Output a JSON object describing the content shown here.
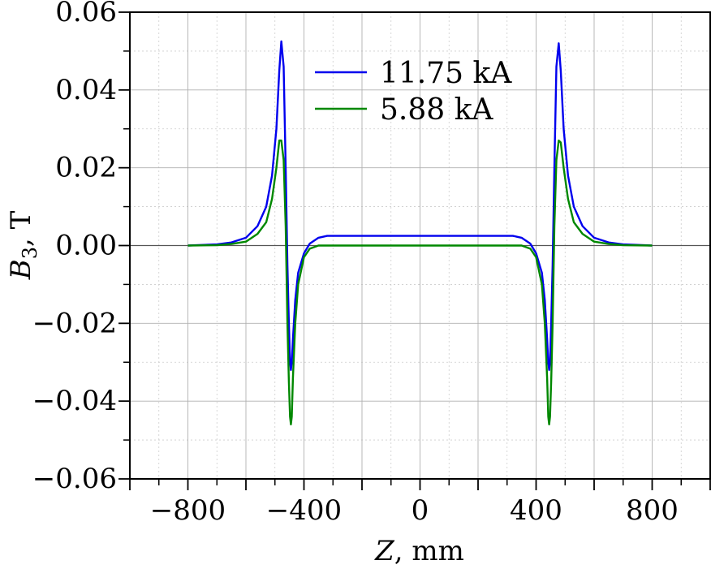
{
  "chart_data": {
    "type": "line",
    "title": "",
    "xlabel_var": "Z",
    "xlabel_unit": ", mm",
    "ylabel_var": "B",
    "ylabel_sub": "3",
    "ylabel_unit": ", T",
    "xlim": [
      -1000,
      1000
    ],
    "ylim": [
      -0.06,
      0.06
    ],
    "xticks": [
      -800,
      -400,
      0,
      400,
      800
    ],
    "xtick_labels": [
      "−800",
      "−400",
      "0",
      "400",
      "800"
    ],
    "yticks": [
      -0.06,
      -0.04,
      -0.02,
      0.0,
      0.02,
      0.04,
      0.06
    ],
    "ytick_labels": [
      "−0.06",
      "−0.04",
      "−0.02",
      "0.00",
      "0.02",
      "0.04",
      "0.06"
    ],
    "grid": true,
    "legend_position": "top-center",
    "series": [
      {
        "name": "11.75 kA",
        "color": "#0000ee",
        "x": [
          -800,
          -700,
          -650,
          -600,
          -560,
          -530,
          -510,
          -495,
          -485,
          -478,
          -470,
          -463,
          -457,
          -452,
          -448,
          -445,
          -442,
          -438,
          -430,
          -420,
          -400,
          -380,
          -350,
          -320,
          -300,
          0,
          300,
          320,
          350,
          380,
          400,
          420,
          430,
          438,
          442,
          445,
          448,
          452,
          457,
          463,
          470,
          478,
          485,
          495,
          510,
          530,
          560,
          600,
          650,
          700,
          800
        ],
        "y": [
          0.0,
          0.0003,
          0.0008,
          0.002,
          0.005,
          0.01,
          0.018,
          0.03,
          0.045,
          0.0525,
          0.046,
          0.02,
          -0.005,
          -0.02,
          -0.03,
          -0.032,
          -0.03,
          -0.024,
          -0.014,
          -0.007,
          -0.002,
          0.0005,
          0.002,
          0.0025,
          0.0025,
          0.0025,
          0.0025,
          0.0025,
          0.002,
          0.0005,
          -0.002,
          -0.007,
          -0.014,
          -0.024,
          -0.03,
          -0.032,
          -0.03,
          -0.02,
          -0.005,
          0.02,
          0.046,
          0.052,
          0.045,
          0.03,
          0.018,
          0.01,
          0.005,
          0.002,
          0.0008,
          0.0003,
          0.0
        ]
      },
      {
        "name": "5.88 kA",
        "color": "#008800",
        "x": [
          -800,
          -700,
          -650,
          -600,
          -560,
          -530,
          -510,
          -495,
          -485,
          -478,
          -470,
          -463,
          -457,
          -452,
          -448,
          -445,
          -442,
          -438,
          -430,
          -420,
          -400,
          -380,
          -350,
          -320,
          -300,
          0,
          300,
          320,
          350,
          380,
          400,
          420,
          430,
          438,
          442,
          445,
          448,
          452,
          457,
          463,
          470,
          478,
          485,
          495,
          510,
          530,
          560,
          600,
          650,
          700,
          800
        ],
        "y": [
          0.0,
          0.0001,
          0.0004,
          0.001,
          0.003,
          0.006,
          0.012,
          0.02,
          0.027,
          0.027,
          0.022,
          0.005,
          -0.02,
          -0.035,
          -0.044,
          -0.046,
          -0.044,
          -0.034,
          -0.02,
          -0.01,
          -0.003,
          -0.0008,
          0.0,
          0.0,
          0.0,
          0.0,
          0.0,
          0.0,
          0.0,
          -0.0008,
          -0.003,
          -0.01,
          -0.02,
          -0.034,
          -0.044,
          -0.046,
          -0.044,
          -0.035,
          -0.02,
          0.005,
          0.022,
          0.027,
          0.0265,
          0.02,
          0.012,
          0.006,
          0.003,
          0.001,
          0.0004,
          0.0001,
          0.0
        ]
      }
    ]
  }
}
